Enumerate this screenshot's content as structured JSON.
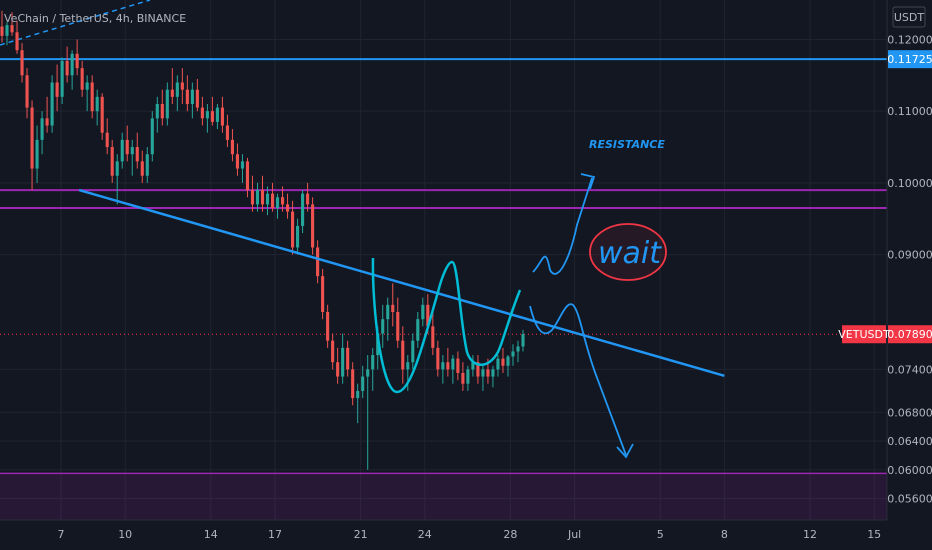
{
  "header": {
    "title": "VeChain / TetherUS, 4h, BINANCE"
  },
  "currency_label": "USDT",
  "price_tags": {
    "current": "0.07890",
    "level": "0.11725",
    "symbol": "VETUSDT"
  },
  "annotations": {
    "resistance": "RESISTANCE",
    "wait": "wait"
  },
  "colors": {
    "background": "#131722",
    "up": "#26a69a",
    "down": "#ef5350",
    "horizontal_level": "#2196f3",
    "resistance_band": "#9c27b0",
    "trendline": "#2196f3",
    "pattern": "#00bcd4",
    "current_price": "#f23645"
  },
  "chart_data": {
    "type": "candlestick",
    "symbol": "VETUSDT",
    "interval": "4h",
    "exchange": "BINANCE",
    "ylim": [
      0.053,
      0.1255
    ],
    "yticks": [
      0.12,
      0.11,
      0.1,
      0.09,
      0.074,
      0.068,
      0.064,
      0.06,
      0.056
    ],
    "ytick_labels": [
      "0.12000",
      "0.11000",
      "0.10000",
      "0.09000",
      "0.07400",
      "0.06800",
      "0.06400",
      "0.06000",
      "0.05600"
    ],
    "xticks": [
      {
        "label": "7",
        "t": 0
      },
      {
        "label": "10",
        "t": 3
      },
      {
        "label": "14",
        "t": 7
      },
      {
        "label": "17",
        "t": 10
      },
      {
        "label": "21",
        "t": 14
      },
      {
        "label": "24",
        "t": 17
      },
      {
        "label": "28",
        "t": 21
      },
      {
        "label": "Jul",
        "t": 24
      },
      {
        "label": "5",
        "t": 28
      },
      {
        "label": "8",
        "t": 31
      },
      {
        "label": "12",
        "t": 35
      },
      {
        "label": "15",
        "t": 38
      }
    ],
    "horizontal_lines": [
      {
        "name": "level",
        "value": 0.11725
      },
      {
        "name": "resistance-top",
        "value": 0.099
      },
      {
        "name": "resistance-bottom",
        "value": 0.0965
      },
      {
        "name": "support-zone-top",
        "value": 0.0595
      }
    ],
    "current_price": 0.0789,
    "trendline": [
      {
        "t": 0.85,
        "price": 0.099
      },
      {
        "t": 31.0,
        "price": 0.0731
      }
    ],
    "ohlc": [
      [
        0.1218,
        0.124,
        0.1196,
        0.1205
      ],
      [
        0.1205,
        0.1224,
        0.1192,
        0.122
      ],
      [
        0.122,
        0.1238,
        0.1205,
        0.121
      ],
      [
        0.121,
        0.1226,
        0.118,
        0.1185
      ],
      [
        0.1185,
        0.1195,
        0.114,
        0.115
      ],
      [
        0.115,
        0.116,
        0.109,
        0.1105
      ],
      [
        0.1105,
        0.1115,
        0.099,
        0.102
      ],
      [
        0.102,
        0.108,
        0.1,
        0.106
      ],
      [
        0.106,
        0.11,
        0.104,
        0.109
      ],
      [
        0.109,
        0.112,
        0.107,
        0.108
      ],
      [
        0.108,
        0.115,
        0.107,
        0.114
      ],
      [
        0.114,
        0.1165,
        0.11,
        0.112
      ],
      [
        0.112,
        0.1175,
        0.111,
        0.117
      ],
      [
        0.117,
        0.119,
        0.114,
        0.115
      ],
      [
        0.115,
        0.1185,
        0.113,
        0.118
      ],
      [
        0.118,
        0.12,
        0.115,
        0.116
      ],
      [
        0.116,
        0.117,
        0.112,
        0.113
      ],
      [
        0.113,
        0.115,
        0.11,
        0.114
      ],
      [
        0.114,
        0.115,
        0.109,
        0.11
      ],
      [
        0.11,
        0.113,
        0.108,
        0.112
      ],
      [
        0.112,
        0.1125,
        0.106,
        0.107
      ],
      [
        0.107,
        0.109,
        0.104,
        0.105
      ],
      [
        0.105,
        0.106,
        0.1,
        0.101
      ],
      [
        0.101,
        0.104,
        0.097,
        0.103
      ],
      [
        0.103,
        0.107,
        0.102,
        0.106
      ],
      [
        0.106,
        0.108,
        0.103,
        0.104
      ],
      [
        0.104,
        0.106,
        0.101,
        0.105
      ],
      [
        0.105,
        0.107,
        0.102,
        0.103
      ],
      [
        0.103,
        0.1045,
        0.1,
        0.101
      ],
      [
        0.101,
        0.105,
        0.1,
        0.104
      ],
      [
        0.104,
        0.11,
        0.103,
        0.109
      ],
      [
        0.109,
        0.112,
        0.107,
        0.111
      ],
      [
        0.111,
        0.113,
        0.108,
        0.109
      ],
      [
        0.109,
        0.114,
        0.108,
        0.113
      ],
      [
        0.113,
        0.116,
        0.111,
        0.112
      ],
      [
        0.112,
        0.115,
        0.11,
        0.114
      ],
      [
        0.114,
        0.116,
        0.111,
        0.113
      ],
      [
        0.113,
        0.115,
        0.11,
        0.111
      ],
      [
        0.111,
        0.114,
        0.109,
        0.113
      ],
      [
        0.113,
        0.1145,
        0.11,
        0.1105
      ],
      [
        0.1105,
        0.112,
        0.108,
        0.109
      ],
      [
        0.109,
        0.111,
        0.107,
        0.11
      ],
      [
        0.11,
        0.112,
        0.108,
        0.1085
      ],
      [
        0.1085,
        0.111,
        0.1075,
        0.1105
      ],
      [
        0.1105,
        0.112,
        0.107,
        0.108
      ],
      [
        0.108,
        0.1095,
        0.105,
        0.106
      ],
      [
        0.106,
        0.1075,
        0.103,
        0.104
      ],
      [
        0.104,
        0.1055,
        0.101,
        0.102
      ],
      [
        0.102,
        0.104,
        0.1,
        0.103
      ],
      [
        0.103,
        0.1035,
        0.098,
        0.099
      ],
      [
        0.099,
        0.101,
        0.096,
        0.097
      ],
      [
        0.097,
        0.1,
        0.096,
        0.099
      ],
      [
        0.099,
        0.101,
        0.096,
        0.097
      ],
      [
        0.097,
        0.0995,
        0.0955,
        0.0985
      ],
      [
        0.0985,
        0.1,
        0.096,
        0.0965
      ],
      [
        0.0965,
        0.0985,
        0.095,
        0.098
      ],
      [
        0.098,
        0.0995,
        0.096,
        0.097
      ],
      [
        0.097,
        0.0985,
        0.095,
        0.096
      ],
      [
        0.096,
        0.0975,
        0.09,
        0.091
      ],
      [
        0.091,
        0.095,
        0.09,
        0.094
      ],
      [
        0.094,
        0.099,
        0.093,
        0.0985
      ],
      [
        0.0985,
        0.1,
        0.096,
        0.097
      ],
      [
        0.097,
        0.098,
        0.09,
        0.091
      ],
      [
        0.091,
        0.092,
        0.086,
        0.087
      ],
      [
        0.087,
        0.088,
        0.081,
        0.082
      ],
      [
        0.082,
        0.083,
        0.077,
        0.078
      ],
      [
        0.078,
        0.079,
        0.074,
        0.075
      ],
      [
        0.075,
        0.077,
        0.072,
        0.073
      ],
      [
        0.073,
        0.079,
        0.072,
        0.077
      ],
      [
        0.077,
        0.078,
        0.073,
        0.074
      ],
      [
        0.074,
        0.075,
        0.069,
        0.07
      ],
      [
        0.07,
        0.072,
        0.0665,
        0.071
      ],
      [
        0.071,
        0.0745,
        0.07,
        0.073
      ],
      [
        0.073,
        0.076,
        0.06,
        0.074
      ],
      [
        0.074,
        0.077,
        0.071,
        0.076
      ],
      [
        0.076,
        0.08,
        0.074,
        0.079
      ],
      [
        0.079,
        0.083,
        0.077,
        0.081
      ],
      [
        0.081,
        0.084,
        0.078,
        0.083
      ],
      [
        0.083,
        0.086,
        0.08,
        0.082
      ],
      [
        0.082,
        0.084,
        0.077,
        0.078
      ],
      [
        0.078,
        0.08,
        0.072,
        0.074
      ],
      [
        0.074,
        0.076,
        0.071,
        0.075
      ],
      [
        0.075,
        0.079,
        0.074,
        0.078
      ],
      [
        0.078,
        0.082,
        0.077,
        0.081
      ],
      [
        0.081,
        0.084,
        0.08,
        0.083
      ],
      [
        0.083,
        0.0845,
        0.079,
        0.08
      ],
      [
        0.08,
        0.082,
        0.076,
        0.077
      ],
      [
        0.077,
        0.078,
        0.073,
        0.074
      ],
      [
        0.074,
        0.076,
        0.072,
        0.075
      ],
      [
        0.075,
        0.077,
        0.073,
        0.074
      ],
      [
        0.074,
        0.076,
        0.072,
        0.0755
      ],
      [
        0.0755,
        0.0765,
        0.0725,
        0.0735
      ],
      [
        0.0735,
        0.075,
        0.071,
        0.072
      ],
      [
        0.072,
        0.0745,
        0.071,
        0.074
      ],
      [
        0.074,
        0.076,
        0.073,
        0.075
      ],
      [
        0.075,
        0.076,
        0.072,
        0.073
      ],
      [
        0.073,
        0.0745,
        0.071,
        0.074
      ],
      [
        0.074,
        0.0755,
        0.072,
        0.073
      ],
      [
        0.073,
        0.0745,
        0.0715,
        0.074
      ],
      [
        0.074,
        0.076,
        0.073,
        0.0755
      ],
      [
        0.0755,
        0.077,
        0.0735,
        0.0745
      ],
      [
        0.0745,
        0.076,
        0.073,
        0.0758
      ],
      [
        0.0758,
        0.0775,
        0.0745,
        0.0765
      ],
      [
        0.0765,
        0.078,
        0.075,
        0.0772
      ],
      [
        0.0772,
        0.0795,
        0.0765,
        0.0789
      ]
    ]
  }
}
